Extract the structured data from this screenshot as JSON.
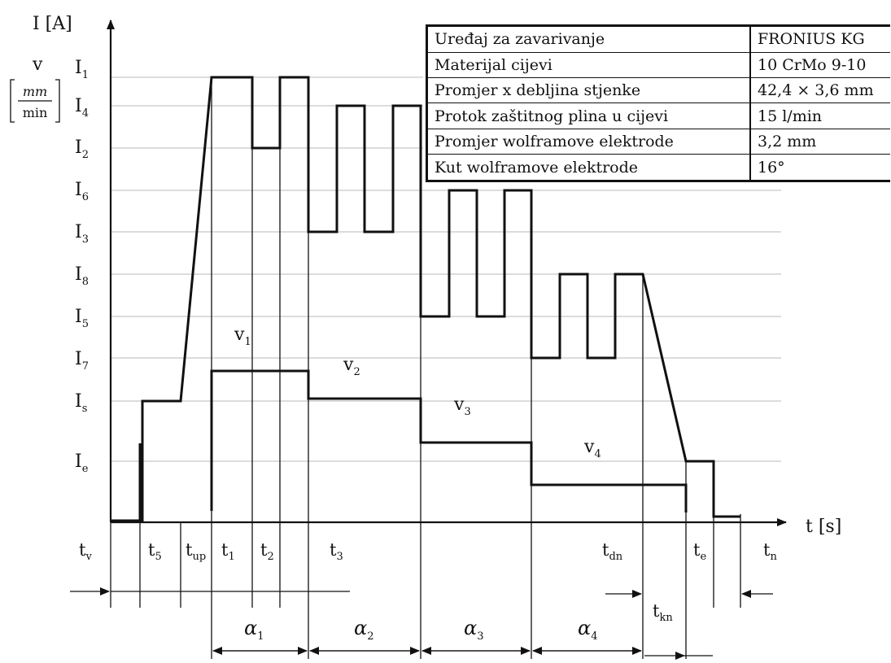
{
  "axes": {
    "y_label_main": "I [A]",
    "y_label_speed": "v",
    "unit_num": "mm",
    "unit_den": "min",
    "x_label": "t [s]"
  },
  "current_levels": [
    {
      "letter": "I",
      "sub": "1"
    },
    {
      "letter": "I",
      "sub": "4"
    },
    {
      "letter": "I",
      "sub": "2"
    },
    {
      "letter": "I",
      "sub": "6"
    },
    {
      "letter": "I",
      "sub": "3"
    },
    {
      "letter": "I",
      "sub": "8"
    },
    {
      "letter": "I",
      "sub": "5"
    },
    {
      "letter": "I",
      "sub": "7"
    },
    {
      "letter": "I",
      "sub": "s"
    },
    {
      "letter": "I",
      "sub": "e"
    }
  ],
  "time_labels": [
    {
      "letter": "t",
      "sub": "v"
    },
    {
      "letter": "t",
      "sub": "5"
    },
    {
      "letter": "t",
      "sub": "up"
    },
    {
      "letter": "t",
      "sub": "1"
    },
    {
      "letter": "t",
      "sub": "2"
    },
    {
      "letter": "t",
      "sub": "3"
    },
    {
      "letter": "t",
      "sub": "dn"
    },
    {
      "letter": "t",
      "sub": "e"
    },
    {
      "letter": "t",
      "sub": "n"
    },
    {
      "letter": "t",
      "sub": "kn"
    }
  ],
  "pulse_periods": [
    {
      "letter": "α",
      "sub": "1"
    },
    {
      "letter": "α",
      "sub": "2"
    },
    {
      "letter": "α",
      "sub": "3"
    },
    {
      "letter": "α",
      "sub": "4"
    }
  ],
  "speed_labels": [
    {
      "letter": "v",
      "sub": "1"
    },
    {
      "letter": "v",
      "sub": "2"
    },
    {
      "letter": "v",
      "sub": "3"
    },
    {
      "letter": "v",
      "sub": "4"
    }
  ],
  "parameters": [
    {
      "name": "Uređaj za zavarivanje",
      "value": "FRONIUS KG"
    },
    {
      "name": "Materijal cijevi",
      "value": "10 CrMo 9-10"
    },
    {
      "name": "Promjer x debljina stjenke",
      "value": "42,4 × 3,6 mm"
    },
    {
      "name": "Protok zaštitnog plina u cijevi",
      "value": "15  l/min"
    },
    {
      "name": "Promjer wolframove elektrode",
      "value": "3,2 mm"
    },
    {
      "name": "Kut wolframove elektrode",
      "value": "16°"
    }
  ]
}
